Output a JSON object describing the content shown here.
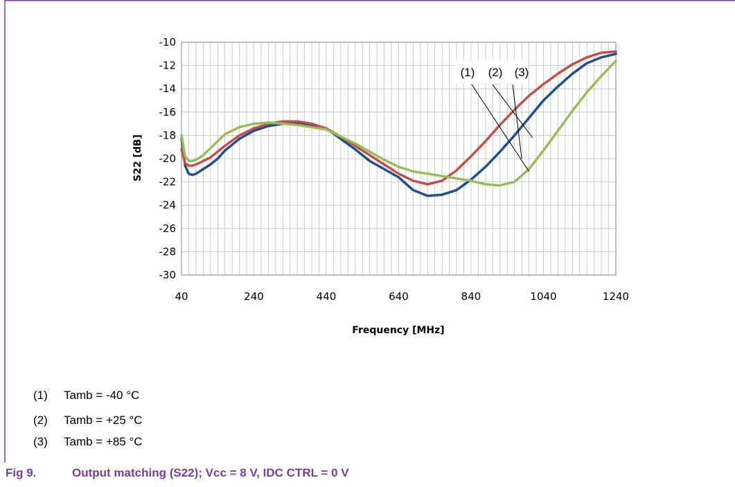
{
  "chart_data": {
    "type": "line",
    "xlabel": "Frequency [MHz]",
    "ylabel": "S22 [dB]",
    "xlim": [
      40,
      1240
    ],
    "ylim": [
      -30,
      -10
    ],
    "xticks": [
      40,
      240,
      440,
      640,
      840,
      1040,
      1240
    ],
    "yticks": [
      -10,
      -12,
      -14,
      -16,
      -18,
      -20,
      -22,
      -24,
      -26,
      -28,
      -30
    ],
    "grid": true,
    "callout_labels": [
      "(1)",
      "(2)",
      "(3)"
    ],
    "series": [
      {
        "color": "#1f4e8c",
        "x": [
          40,
          50,
          60,
          70,
          80,
          100,
          120,
          140,
          160,
          200,
          240,
          280,
          320,
          360,
          400,
          440,
          480,
          520,
          560,
          600,
          640,
          680,
          720,
          760,
          800,
          840,
          880,
          920,
          960,
          1000,
          1040,
          1080,
          1120,
          1160,
          1200,
          1240
        ],
        "y": [
          -18.3,
          -20.6,
          -21.3,
          -21.4,
          -21.3,
          -20.9,
          -20.5,
          -20.0,
          -19.3,
          -18.3,
          -17.6,
          -17.2,
          -17.0,
          -17.0,
          -17.1,
          -17.4,
          -18.3,
          -19.2,
          -20.2,
          -20.9,
          -21.6,
          -22.7,
          -23.2,
          -23.1,
          -22.7,
          -21.8,
          -20.7,
          -19.4,
          -18.0,
          -16.5,
          -15.0,
          -13.8,
          -12.7,
          -11.8,
          -11.3,
          -11.0
        ]
      },
      {
        "color": "#c0504d",
        "x": [
          40,
          50,
          60,
          70,
          80,
          100,
          120,
          140,
          160,
          200,
          240,
          280,
          320,
          360,
          400,
          440,
          480,
          520,
          560,
          600,
          640,
          680,
          720,
          760,
          800,
          840,
          880,
          920,
          960,
          1000,
          1040,
          1080,
          1120,
          1160,
          1200,
          1240
        ],
        "y": [
          -19.2,
          -20.4,
          -20.6,
          -20.6,
          -20.5,
          -20.2,
          -19.9,
          -19.4,
          -18.9,
          -18.0,
          -17.4,
          -17.0,
          -16.8,
          -16.8,
          -17.0,
          -17.4,
          -18.1,
          -18.9,
          -19.7,
          -20.5,
          -21.3,
          -21.9,
          -22.2,
          -21.9,
          -21.0,
          -19.8,
          -18.5,
          -17.1,
          -15.8,
          -14.6,
          -13.6,
          -12.7,
          -11.9,
          -11.3,
          -10.9,
          -10.8
        ]
      },
      {
        "color": "#9bbb59",
        "x": [
          40,
          50,
          60,
          70,
          80,
          100,
          120,
          140,
          160,
          200,
          240,
          280,
          320,
          360,
          400,
          440,
          480,
          520,
          560,
          600,
          640,
          680,
          720,
          760,
          800,
          840,
          880,
          920,
          960,
          1000,
          1040,
          1080,
          1120,
          1160,
          1200,
          1240
        ],
        "y": [
          -18.0,
          -19.8,
          -20.2,
          -20.2,
          -20.1,
          -19.7,
          -19.1,
          -18.5,
          -17.9,
          -17.3,
          -17.0,
          -16.9,
          -17.0,
          -17.1,
          -17.3,
          -17.5,
          -18.1,
          -18.7,
          -19.4,
          -20.1,
          -20.7,
          -21.1,
          -21.3,
          -21.5,
          -21.7,
          -21.9,
          -22.2,
          -22.3,
          -22.0,
          -20.9,
          -19.3,
          -17.6,
          -15.9,
          -14.3,
          -12.9,
          -11.6
        ]
      }
    ]
  },
  "legend": [
    {
      "num": "(1)",
      "text": "Tamb = -40 °C"
    },
    {
      "num": "(2)",
      "text": "Tamb = +25 °C"
    },
    {
      "num": "(3)",
      "text": "Tamb = +85 °C"
    }
  ],
  "caption": {
    "fig": "Fig 9.",
    "text": "Output matching (S22); Vcc = 8 V, IDC CTRL = 0 V"
  },
  "colors": {
    "frame": "#7a3d99",
    "caption": "#7a3d99",
    "grid": "#bfbfbf"
  }
}
